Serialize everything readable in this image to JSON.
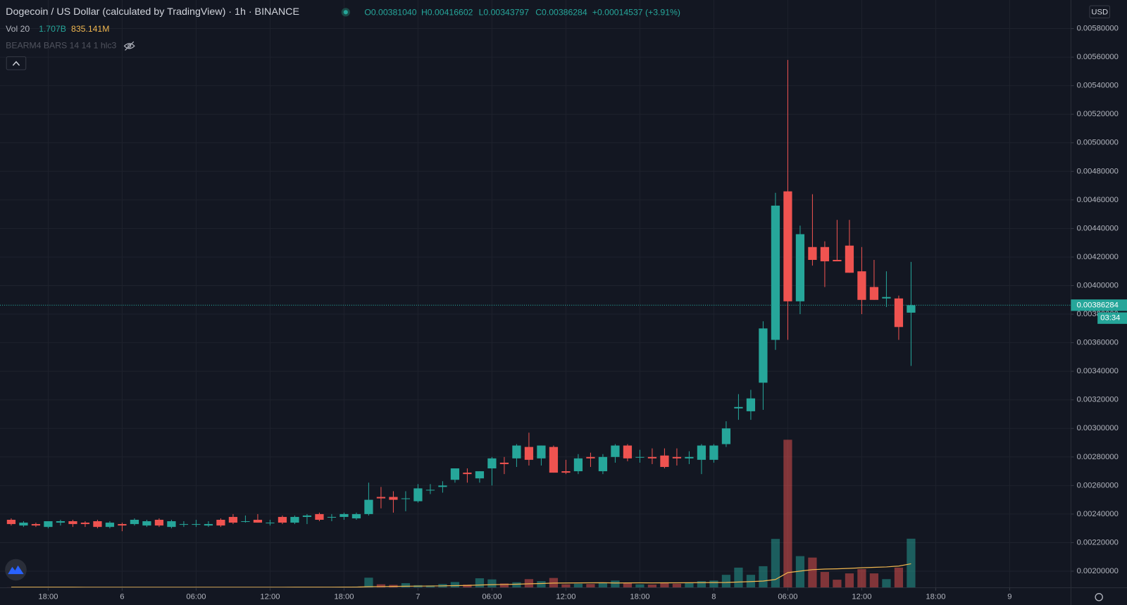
{
  "chart_data": {
    "type": "candlestick",
    "title": "Dogecoin / US Dollar (calculated by TradingView) · 1h · BINANCE",
    "ohlc_labels": [
      "O0.00381040",
      "H0.00416602",
      "L0.00343797",
      "C0.00386284",
      "+0.00014537 (+3.91%)"
    ],
    "volume_label": "Vol 20",
    "volume_value_label": "1.707B",
    "volume_ma_label": "835.141M",
    "indicator_label": "BEARM4 BARS 14 14 1 hlc3",
    "currency": "USD",
    "countdown": "03:34",
    "up_color": "#26a69a",
    "down_color": "#ef5350",
    "ma_color": "#f0b64f",
    "grid": true,
    "xlim": [
      -9.91,
      76.97
    ],
    "xticks": [
      {
        "value": -6,
        "label": "18:00"
      },
      {
        "value": 0,
        "label": "6"
      },
      {
        "value": 6,
        "label": "06:00"
      },
      {
        "value": 12,
        "label": "12:00"
      },
      {
        "value": 18,
        "label": "18:00"
      },
      {
        "value": 24,
        "label": "7"
      },
      {
        "value": 30,
        "label": "06:00"
      },
      {
        "value": 36,
        "label": "12:00"
      },
      {
        "value": 42,
        "label": "18:00"
      },
      {
        "value": 48,
        "label": "8"
      },
      {
        "value": 54,
        "label": "06:00"
      },
      {
        "value": 60,
        "label": "12:00"
      },
      {
        "value": 66,
        "label": "18:00"
      },
      {
        "value": 72,
        "label": "9"
      }
    ],
    "ylim": [
      0.001884,
      0.006
    ],
    "yticks": [
      {
        "value": 0.002,
        "label": "0.00200000"
      },
      {
        "value": 0.0022,
        "label": "0.00220000"
      },
      {
        "value": 0.0024,
        "label": "0.00240000"
      },
      {
        "value": 0.0026,
        "label": "0.00260000"
      },
      {
        "value": 0.0028,
        "label": "0.00280000"
      },
      {
        "value": 0.003,
        "label": "0.00300000"
      },
      {
        "value": 0.0032,
        "label": "0.00320000"
      },
      {
        "value": 0.0034,
        "label": "0.00340000"
      },
      {
        "value": 0.0036,
        "label": "0.00360000"
      },
      {
        "value": 0.0038,
        "label": "0.00380000"
      },
      {
        "value": 0.004,
        "label": "0.00400000"
      },
      {
        "value": 0.0042,
        "label": "0.00420000"
      },
      {
        "value": 0.0044,
        "label": "0.00440000"
      },
      {
        "value": 0.0046,
        "label": "0.00460000"
      },
      {
        "value": 0.0048,
        "label": "0.00480000"
      },
      {
        "value": 0.005,
        "label": "0.00500000"
      },
      {
        "value": 0.0052,
        "label": "0.00520000"
      },
      {
        "value": 0.0054,
        "label": "0.00540000"
      },
      {
        "value": 0.0056,
        "label": "0.00560000"
      },
      {
        "value": 0.0058,
        "label": "0.00580000"
      }
    ],
    "x": [
      -9,
      -8,
      -7,
      -6,
      -5,
      -4,
      -3,
      -2,
      -1,
      0,
      1,
      2,
      3,
      4,
      5,
      6,
      7,
      8,
      9,
      10,
      11,
      12,
      13,
      14,
      15,
      16,
      17,
      18,
      19,
      20,
      21,
      22,
      23,
      24,
      25,
      26,
      27,
      28,
      29,
      30,
      31,
      32,
      33,
      34,
      35,
      36,
      37,
      38,
      39,
      40,
      41,
      42,
      43,
      44,
      45,
      46,
      47,
      48,
      49,
      50,
      51,
      52,
      53,
      54,
      55,
      56,
      57,
      58,
      59,
      60,
      61,
      62,
      63,
      64
    ],
    "open": [
      0.00236,
      0.00232,
      0.00233,
      0.00231,
      0.00234,
      0.00235,
      0.00234,
      0.00235,
      0.00231,
      0.00233,
      0.00233,
      0.00232,
      0.00236,
      0.00231,
      0.00233,
      0.00233,
      0.00232,
      0.00236,
      0.00238,
      0.00235,
      0.00236,
      0.00234,
      0.00238,
      0.00234,
      0.00238,
      0.0024,
      0.00238,
      0.00238,
      0.00237,
      0.0024,
      0.00252,
      0.00252,
      0.00251,
      0.00249,
      0.00257,
      0.00259,
      0.00264,
      0.00269,
      0.00265,
      0.00272,
      0.00276,
      0.00279,
      0.00287,
      0.00279,
      0.00287,
      0.0027,
      0.0027,
      0.0028,
      0.0027,
      0.0028,
      0.00288,
      0.0028,
      0.0028,
      0.00281,
      0.0028,
      0.00279,
      0.00278,
      0.00278,
      0.00289,
      0.00314,
      0.00312,
      0.00332,
      0.00362,
      0.00466,
      0.00389,
      0.00427,
      0.00427,
      0.00418,
      0.00428,
      0.0041,
      0.00399,
      0.00391,
      0.00391,
      0.0038104
    ],
    "high": [
      0.00237,
      0.00235,
      0.00234,
      0.00235,
      0.00236,
      0.00236,
      0.00235,
      0.00236,
      0.00235,
      0.00234,
      0.00237,
      0.00236,
      0.00237,
      0.00236,
      0.00235,
      0.00236,
      0.00235,
      0.00237,
      0.0024,
      0.00239,
      0.0024,
      0.00236,
      0.00239,
      0.00239,
      0.0024,
      0.00241,
      0.0024,
      0.00241,
      0.00241,
      0.00262,
      0.00259,
      0.00256,
      0.00256,
      0.00261,
      0.00261,
      0.00263,
      0.00272,
      0.00272,
      0.0027,
      0.0028,
      0.0028,
      0.00289,
      0.00297,
      0.00288,
      0.00288,
      0.00278,
      0.00282,
      0.00283,
      0.00282,
      0.00289,
      0.00289,
      0.00285,
      0.00286,
      0.00286,
      0.00286,
      0.00284,
      0.00289,
      0.00289,
      0.00305,
      0.00324,
      0.00327,
      0.00375,
      0.00465,
      0.00558,
      0.00442,
      0.00464,
      0.00431,
      0.00446,
      0.00446,
      0.00427,
      0.00418,
      0.0041,
      0.00393,
      0.00416602
    ],
    "low": [
      0.00232,
      0.00231,
      0.00231,
      0.0023,
      0.00232,
      0.00231,
      0.00231,
      0.0023,
      0.0023,
      0.00228,
      0.00232,
      0.00231,
      0.00231,
      0.0023,
      0.00231,
      0.00231,
      0.00231,
      0.00231,
      0.00233,
      0.00234,
      0.00234,
      0.00232,
      0.00233,
      0.00233,
      0.00233,
      0.00235,
      0.00235,
      0.00236,
      0.00236,
      0.00239,
      0.00244,
      0.00241,
      0.00242,
      0.00248,
      0.00254,
      0.00255,
      0.00262,
      0.00262,
      0.00262,
      0.0026,
      0.00268,
      0.00273,
      0.00274,
      0.00274,
      0.00269,
      0.00268,
      0.00268,
      0.00273,
      0.00268,
      0.00276,
      0.00277,
      0.00276,
      0.00275,
      0.00272,
      0.00274,
      0.00275,
      0.00268,
      0.00276,
      0.00287,
      0.00306,
      0.00306,
      0.00313,
      0.00355,
      0.00362,
      0.0038,
      0.00414,
      0.00399,
      0.00417,
      0.00409,
      0.0038,
      0.0039,
      0.00385,
      0.00362,
      0.00343797
    ],
    "close": [
      0.00233,
      0.00234,
      0.00232,
      0.00235,
      0.00235,
      0.00233,
      0.00233,
      0.00231,
      0.00234,
      0.00232,
      0.00236,
      0.00235,
      0.00232,
      0.00235,
      0.00233,
      0.00233,
      0.00233,
      0.00232,
      0.00234,
      0.00235,
      0.00234,
      0.00234,
      0.00234,
      0.00238,
      0.00239,
      0.00236,
      0.00238,
      0.0024,
      0.0024,
      0.0025,
      0.00251,
      0.0025,
      0.00251,
      0.00258,
      0.00257,
      0.0026,
      0.00272,
      0.00268,
      0.0027,
      0.00279,
      0.00275,
      0.00288,
      0.00278,
      0.00288,
      0.00269,
      0.00269,
      0.00279,
      0.00279,
      0.0028,
      0.00288,
      0.00279,
      0.0028,
      0.00279,
      0.00273,
      0.00279,
      0.0028,
      0.00288,
      0.00288,
      0.003,
      0.00315,
      0.00321,
      0.0037,
      0.00456,
      0.00389,
      0.00436,
      0.00418,
      0.00417,
      0.00417,
      0.00409,
      0.0039,
      0.0039,
      0.00392,
      0.00371,
      0.00386284
    ],
    "volume": [
      15000000,
      12000000,
      10000000,
      14000000,
      12000000,
      10000000,
      11000000,
      13000000,
      12000000,
      15000000,
      14000000,
      12000000,
      16000000,
      13000000,
      11000000,
      12000000,
      14000000,
      18000000,
      20000000,
      22000000,
      18000000,
      15000000,
      25000000,
      20000000,
      24000000,
      28000000,
      22000000,
      35000000,
      40000000,
      350000000,
      120000000,
      100000000,
      160000000,
      90000000,
      80000000,
      130000000,
      200000000,
      110000000,
      330000000,
      290000000,
      150000000,
      190000000,
      300000000,
      230000000,
      340000000,
      120000000,
      140000000,
      130000000,
      180000000,
      250000000,
      160000000,
      120000000,
      110000000,
      170000000,
      140000000,
      160000000,
      230000000,
      250000000,
      450000000,
      700000000,
      450000000,
      750000000,
      1700000000,
      5150000000,
      1100000000,
      1050000000,
      550000000,
      280000000,
      500000000,
      650000000,
      500000000,
      300000000,
      700000000,
      1707000000
    ],
    "volume_ma": [
      20000000,
      20000000,
      19000000,
      19000000,
      18000000,
      18000000,
      17000000,
      17000000,
      17000000,
      16000000,
      16000000,
      16000000,
      16000000,
      16000000,
      15000000,
      15000000,
      15000000,
      15000000,
      16000000,
      16000000,
      17000000,
      17000000,
      17000000,
      18000000,
      18000000,
      19000000,
      20000000,
      21000000,
      22000000,
      38000000,
      42000000,
      46000000,
      53000000,
      57000000,
      60000000,
      66000000,
      75000000,
      80000000,
      95000000,
      108000000,
      115000000,
      124000000,
      138000000,
      148000000,
      163000000,
      167000000,
      170000000,
      172000000,
      175000000,
      167000000,
      170000000,
      172000000,
      170000000,
      171000000,
      173000000,
      175000000,
      178000000,
      180000000,
      185000000,
      200000000,
      215000000,
      233000000,
      288000000,
      528000000,
      580000000,
      630000000,
      650000000,
      660000000,
      675000000,
      695000000,
      712000000,
      725000000,
      755000000,
      835141000
    ]
  }
}
